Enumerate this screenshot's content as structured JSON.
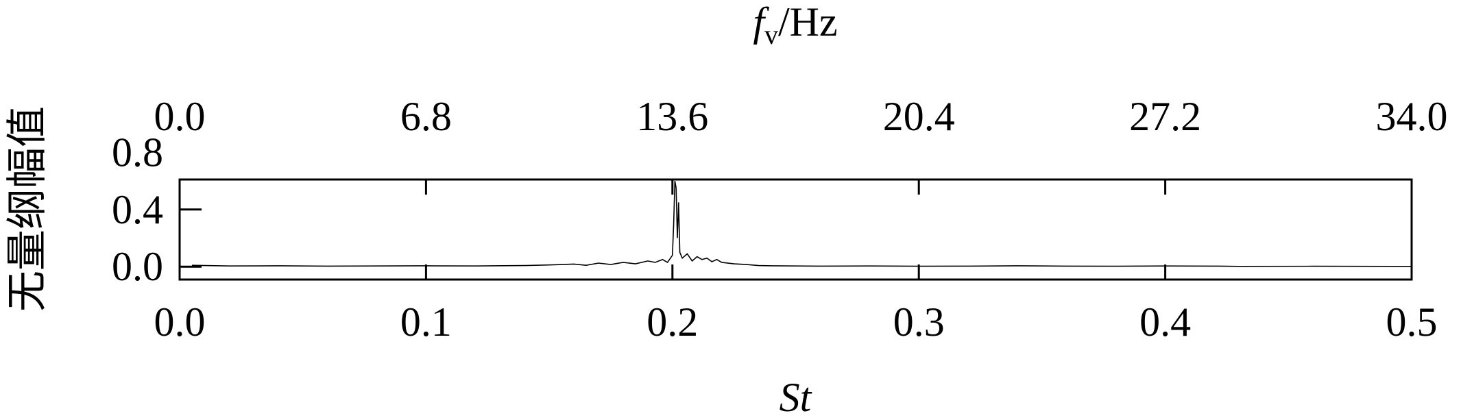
{
  "chart_data": {
    "type": "line",
    "y_label": "无量纲幅值",
    "x_label": "St",
    "x2_label": {
      "symbol": "f",
      "subscript": "v",
      "unit": "/Hz"
    },
    "x": [
      0.005,
      0.02,
      0.04,
      0.06,
      0.08,
      0.1,
      0.12,
      0.14,
      0.15,
      0.16,
      0.165,
      0.17,
      0.175,
      0.18,
      0.185,
      0.19,
      0.193,
      0.196,
      0.198,
      0.2,
      0.2005,
      0.201,
      0.2015,
      0.202,
      0.2025,
      0.203,
      0.204,
      0.206,
      0.208,
      0.21,
      0.212,
      0.214,
      0.216,
      0.218,
      0.22,
      0.225,
      0.23,
      0.235,
      0.24,
      0.26,
      0.28,
      0.3,
      0.32,
      0.34,
      0.36,
      0.38,
      0.4,
      0.42,
      0.43,
      0.46,
      0.5
    ],
    "values": [
      0.01,
      0.005,
      0.006,
      0.004,
      0.005,
      0.006,
      0.005,
      0.008,
      0.012,
      0.018,
      0.01,
      0.025,
      0.015,
      0.03,
      0.02,
      0.04,
      0.03,
      0.05,
      0.03,
      0.08,
      0.3,
      0.6,
      0.55,
      0.2,
      0.45,
      0.1,
      0.06,
      0.09,
      0.04,
      0.07,
      0.05,
      0.06,
      0.035,
      0.05,
      0.03,
      0.02,
      0.015,
      0.008,
      0.006,
      0.004,
      0.005,
      0.003,
      0.004,
      0.006,
      0.004,
      0.003,
      0.005,
      0.004,
      0.002,
      0.003,
      0.002
    ],
    "color": "#000000",
    "xlim": [
      0,
      0.5
    ],
    "xticks": [
      {
        "value": 0,
        "label": "0.0"
      },
      0.1,
      0.2,
      0.3,
      0.4,
      0.5
    ],
    "x2lim": [
      0,
      34
    ],
    "x2ticks": [
      {
        "value": 0,
        "label": "0.0"
      },
      6.8,
      13.6,
      20.4,
      27.2,
      {
        "value": 34,
        "label": "34.0"
      }
    ],
    "ylim": [
      -0.09,
      0.61
    ],
    "yticks": [
      {
        "value": 0,
        "label": "0.0"
      },
      0.4,
      0.8
    ]
  }
}
